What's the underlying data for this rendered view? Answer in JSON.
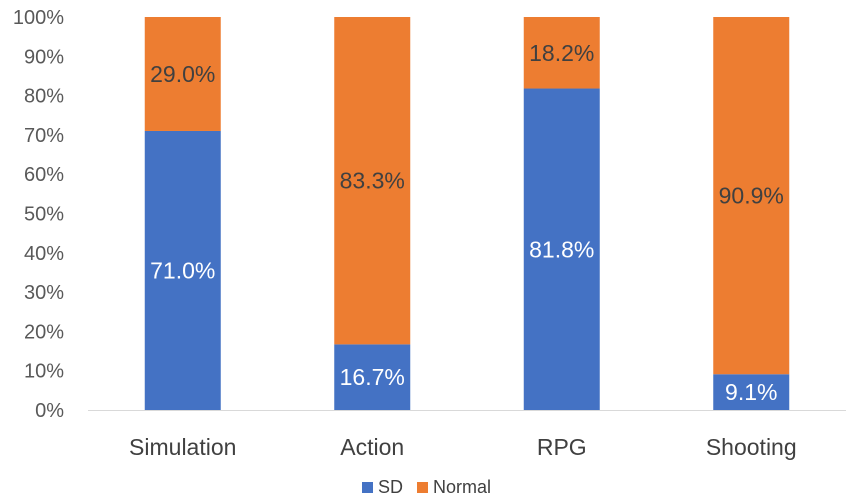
{
  "chart_data": {
    "type": "bar",
    "stacked": true,
    "percent_stacked": true,
    "categories": [
      "Simulation",
      "Action",
      "RPG",
      "Shooting"
    ],
    "series": [
      {
        "name": "SD",
        "values": [
          71.0,
          16.7,
          81.8,
          9.1
        ],
        "color": "#4472C4",
        "label_color": "#ffffff"
      },
      {
        "name": "Normal",
        "values": [
          29.0,
          83.3,
          18.2,
          90.9
        ],
        "color": "#ED7D31",
        "label_color": "#404040"
      }
    ],
    "data_labels": [
      [
        "71.0%",
        "16.7%",
        "81.8%",
        "9.1%"
      ],
      [
        "29.0%",
        "83.3%",
        "18.2%",
        "90.9%"
      ]
    ],
    "y_ticks": [
      "0%",
      "10%",
      "20%",
      "30%",
      "40%",
      "50%",
      "60%",
      "70%",
      "80%",
      "90%",
      "100%"
    ],
    "ylim": [
      0,
      100
    ],
    "grid": false,
    "legend_position": "bottom"
  }
}
